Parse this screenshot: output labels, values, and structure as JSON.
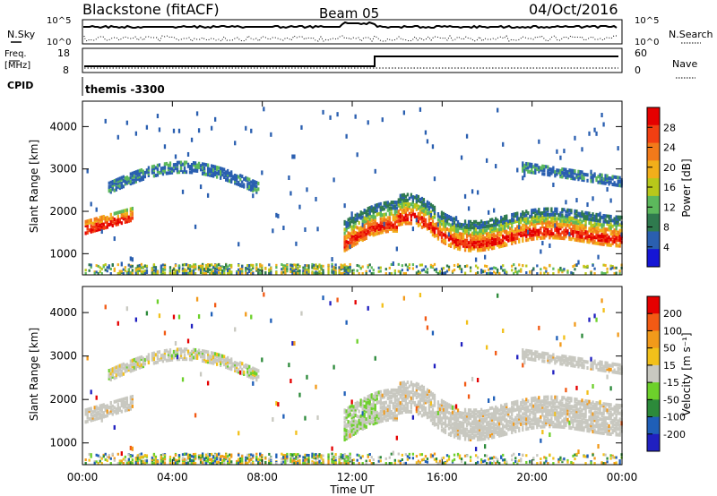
{
  "header": {
    "station": "Blackstone (fitACF)",
    "beam": "Beam 05",
    "date": "04/Oct/2016"
  },
  "top_panels": {
    "nsky_label": "N.Sky",
    "nsky_ticks": [
      "10^5",
      "10^0"
    ],
    "nsearch_label": "N.Search",
    "nsearch_ticks": [
      "10^5",
      "10^0"
    ],
    "freq_label_line1": "Freq.",
    "freq_label_line2": "[MHz]",
    "freq_ticks": [
      "18",
      "8"
    ],
    "nave_label": "Nave",
    "nave_ticks": [
      "60",
      "0"
    ],
    "cpid_label": "CPID",
    "cpid_text": "themis -3300"
  },
  "colors": {
    "power_scale": [
      "#1515d5",
      "#2a5fb0",
      "#2f7a4e",
      "#5cb85c",
      "#b8c81a",
      "#f2ae1a",
      "#f27a1a",
      "#f23f12",
      "#e50000"
    ],
    "velocity_scale": [
      "#2020c0",
      "#1f5fb8",
      "#2c8a3a",
      "#6dd02b",
      "#c8c8c0",
      "#f2c01a",
      "#f29a1a",
      "#f25a14",
      "#e50000"
    ]
  },
  "chart_data": [
    {
      "type": "heatmap",
      "name": "power",
      "ylabel": "Slant Range [km]",
      "yticks": [
        "4000",
        "3000",
        "2000",
        "1000"
      ],
      "ylim": [
        500,
        4600
      ],
      "xticks": [
        "00:00",
        "04:00",
        "08:00",
        "12:00",
        "16:00",
        "20:00",
        "00:00"
      ],
      "xlim_hours": [
        0,
        24
      ],
      "colorbar_label": "Power [dB]",
      "colorbar_ticks": [
        "28",
        "24",
        "20",
        "16",
        "12",
        "8",
        "4"
      ],
      "colorbar_range": [
        0,
        32
      ]
    },
    {
      "type": "heatmap",
      "name": "velocity",
      "ylabel": "Slant Range [km]",
      "yticks": [
        "4000",
        "3000",
        "2000",
        "1000"
      ],
      "ylim": [
        500,
        4600
      ],
      "xticks": [
        "00:00",
        "04:00",
        "08:00",
        "12:00",
        "16:00",
        "20:00",
        "00:00"
      ],
      "xlabel": "Time UT",
      "colorbar_label": "Velocity [m s⁻¹]",
      "colorbar_ticks": [
        "200",
        "100",
        "50",
        "15",
        "-15",
        "-50",
        "-100",
        "-200"
      ]
    }
  ]
}
